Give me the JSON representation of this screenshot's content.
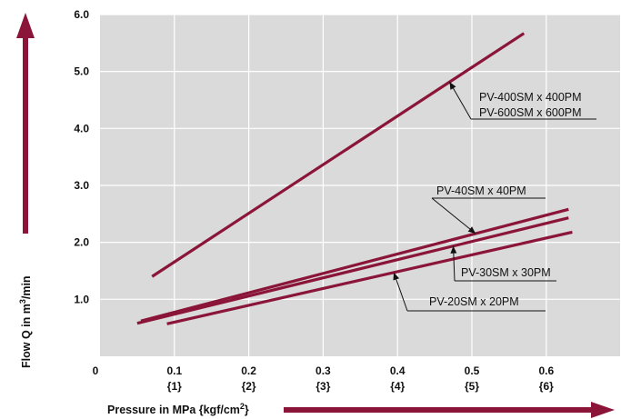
{
  "chart_data": {
    "type": "line",
    "xlabel": "Pressure in MPa {kgf/cm",
    "xlabel_sup": "2",
    "xlabel_end": "}",
    "ylabel": "Flow Q in m",
    "ylabel_sup": "3",
    "ylabel_end": "/min",
    "xlim": [
      0,
      0.7
    ],
    "ylim": [
      0,
      6.0
    ],
    "x_ticks": [
      {
        "value": 0,
        "label": "0",
        "sub": ""
      },
      {
        "value": 0.1,
        "label": "0.1",
        "sub": "{1}"
      },
      {
        "value": 0.2,
        "label": "0.2",
        "sub": "{2}"
      },
      {
        "value": 0.3,
        "label": "0.3",
        "sub": "{3}"
      },
      {
        "value": 0.4,
        "label": "0.4",
        "sub": "{4}"
      },
      {
        "value": 0.5,
        "label": "0.5",
        "sub": "{5}"
      },
      {
        "value": 0.6,
        "label": "0.6",
        "sub": "{6}"
      }
    ],
    "y_ticks": [
      {
        "value": 1.0,
        "label": "1.0"
      },
      {
        "value": 2.0,
        "label": "2.0"
      },
      {
        "value": 3.0,
        "label": "3.0"
      },
      {
        "value": 4.0,
        "label": "4.0"
      },
      {
        "value": 5.0,
        "label": "5.0"
      },
      {
        "value": 6.0,
        "label": "6.0"
      }
    ],
    "grid": true,
    "line_color": "#8b1538",
    "plot_bg": "#dadada",
    "series": [
      {
        "name": "PV-400SM x 400PM / PV-600SM x 600PM",
        "points": [
          [
            0.07,
            1.4
          ],
          [
            0.57,
            5.67
          ]
        ]
      },
      {
        "name": "PV-40SM x 40PM",
        "points": [
          [
            0.055,
            0.62
          ],
          [
            0.63,
            2.58
          ]
        ]
      },
      {
        "name": "PV-30SM x 30PM",
        "points": [
          [
            0.05,
            0.58
          ],
          [
            0.63,
            2.43
          ]
        ]
      },
      {
        "name": "PV-20SM x 20PM",
        "points": [
          [
            0.09,
            0.57
          ],
          [
            0.635,
            2.18
          ]
        ]
      }
    ],
    "annotations": [
      {
        "lines": [
          "PV-400SM x 400PM",
          "PV-600SM x 600PM"
        ],
        "series": 0
      },
      {
        "lines": [
          "PV-40SM x 40PM"
        ],
        "series": 1
      },
      {
        "lines": [
          "PV-30SM x 30PM"
        ],
        "series": 2
      },
      {
        "lines": [
          "PV-20SM x 20PM"
        ],
        "series": 3
      }
    ]
  }
}
